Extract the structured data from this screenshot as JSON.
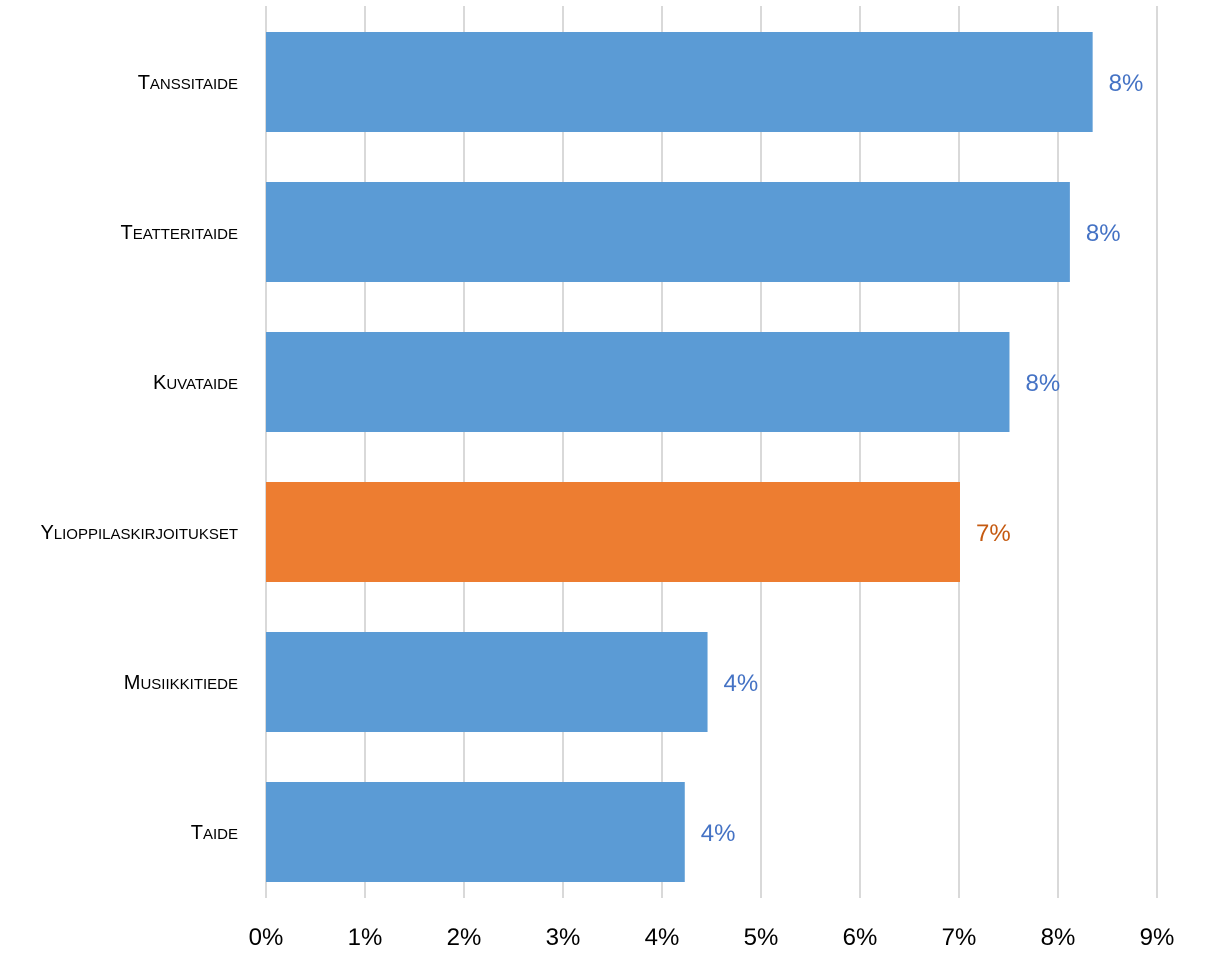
{
  "chart_data": {
    "type": "bar",
    "orientation": "horizontal",
    "categories": [
      "Tanssitaide",
      "Teatteritaide",
      "Kuvataide",
      "Ylioppilaskirjoitukset",
      "Musiikkitiede",
      "Taide"
    ],
    "values": [
      8.35,
      8.12,
      7.51,
      7.01,
      4.46,
      4.23
    ],
    "data_labels": [
      "8%",
      "8%",
      "8%",
      "7%",
      "4%",
      "4%"
    ],
    "bar_colors": [
      "#5b9bd5",
      "#5b9bd5",
      "#5b9bd5",
      "#ed7d31",
      "#5b9bd5",
      "#5b9bd5"
    ],
    "label_colors": [
      "#4472c4",
      "#4472c4",
      "#4472c4",
      "#c55a11",
      "#4472c4",
      "#4472c4"
    ],
    "xlim": [
      0,
      9
    ],
    "ticks": [
      0,
      1,
      2,
      3,
      4,
      5,
      6,
      7,
      8,
      9
    ],
    "tick_labels": [
      "0%",
      "1%",
      "2%",
      "3%",
      "4%",
      "5%",
      "6%",
      "7%",
      "8%",
      "9%"
    ],
    "grid": true,
    "title": "",
    "xlabel": "",
    "ylabel": ""
  }
}
